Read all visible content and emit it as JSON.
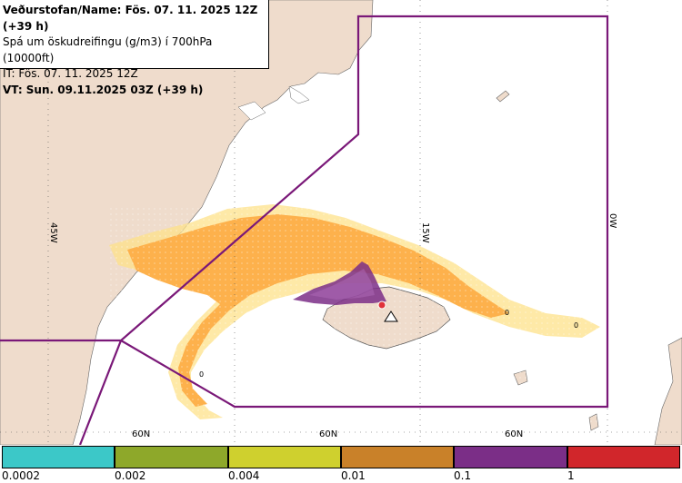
{
  "info_box": {
    "line1": "Veðurstofan/Name: Fös. 07. 11. 2025 12Z (+39 h)",
    "line2": "Spá um öskudreifingu (g/m3) í 700hPa (10000ft)",
    "line3": "IT: Fös. 07. 11. 2025 12Z",
    "line4": "VT: Sun. 09.11.2025 03Z (+39 h)"
  },
  "map": {
    "longitude_labels": [
      "45W",
      "15W",
      "0W"
    ],
    "latitude_labels": [
      "60N",
      "60N",
      "60N"
    ],
    "contour_labels": [
      "0",
      "0",
      "0"
    ],
    "colors": {
      "land": "#efdccc",
      "sea": "#ffffff",
      "boundary": "#7a1878",
      "ash_orange": "#fdb14c",
      "ash_light": "#fde18a",
      "ash_purple": "#7b2e87",
      "volcano": "#e0323b"
    }
  },
  "legend": {
    "colors": [
      "#3cc8c8",
      "#8ea82a",
      "#cfd02e",
      "#c98129",
      "#7b2e87",
      "#d1262b"
    ],
    "labels": [
      "0.0002",
      "0.002",
      "0.004",
      "0.01",
      "0.1",
      "1"
    ]
  }
}
